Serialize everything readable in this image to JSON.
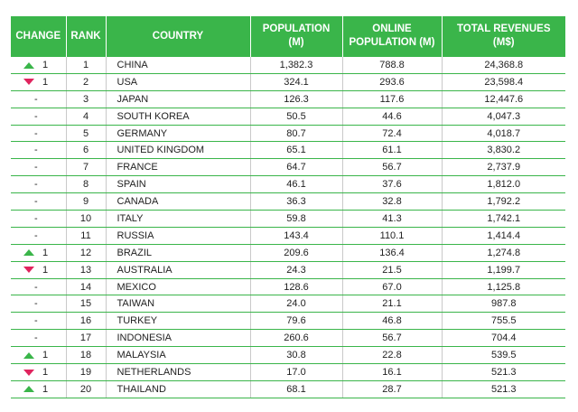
{
  "colors": {
    "header_bg": "#3ab54a",
    "up": "#3ab54a",
    "down": "#e0245e",
    "rule": "#3ab54a"
  },
  "headers": {
    "change": "CHANGE",
    "rank": "RANK",
    "country": "COUNTRY",
    "population": "POPULATION (M)",
    "online": "ONLINE POPULATION (M)",
    "revenues": "TOTAL REVENUES (M$)"
  },
  "rows": [
    {
      "dir": "up",
      "change": "1",
      "rank": "1",
      "country": "CHINA",
      "population": "1,382.3",
      "online": "788.8",
      "revenues": "24,368.8"
    },
    {
      "dir": "down",
      "change": "1",
      "rank": "2",
      "country": "USA",
      "population": "324.1",
      "online": "293.6",
      "revenues": "23,598.4"
    },
    {
      "dir": "none",
      "change": "-",
      "rank": "3",
      "country": "JAPAN",
      "population": "126.3",
      "online": "117.6",
      "revenues": "12,447.6"
    },
    {
      "dir": "none",
      "change": "-",
      "rank": "4",
      "country": "SOUTH KOREA",
      "population": "50.5",
      "online": "44.6",
      "revenues": "4,047.3"
    },
    {
      "dir": "none",
      "change": "-",
      "rank": "5",
      "country": "GERMANY",
      "population": "80.7",
      "online": "72.4",
      "revenues": "4,018.7"
    },
    {
      "dir": "none",
      "change": "-",
      "rank": "6",
      "country": "UNITED KINGDOM",
      "population": "65.1",
      "online": "61.1",
      "revenues": "3,830.2"
    },
    {
      "dir": "none",
      "change": "-",
      "rank": "7",
      "country": "FRANCE",
      "population": "64.7",
      "online": "56.7",
      "revenues": "2,737.9"
    },
    {
      "dir": "none",
      "change": "-",
      "rank": "8",
      "country": "SPAIN",
      "population": "46.1",
      "online": "37.6",
      "revenues": "1,812.0"
    },
    {
      "dir": "none",
      "change": "-",
      "rank": "9",
      "country": "CANADA",
      "population": "36.3",
      "online": "32.8",
      "revenues": "1,792.2"
    },
    {
      "dir": "none",
      "change": "-",
      "rank": "10",
      "country": "ITALY",
      "population": "59.8",
      "online": "41.3",
      "revenues": "1,742.1"
    },
    {
      "dir": "none",
      "change": "-",
      "rank": "11",
      "country": "RUSSIA",
      "population": "143.4",
      "online": "110.1",
      "revenues": "1,414.4"
    },
    {
      "dir": "up",
      "change": "1",
      "rank": "12",
      "country": "BRAZIL",
      "population": "209.6",
      "online": "136.4",
      "revenues": "1,274.8"
    },
    {
      "dir": "down",
      "change": "1",
      "rank": "13",
      "country": "AUSTRALIA",
      "population": "24.3",
      "online": "21.5",
      "revenues": "1,199.7"
    },
    {
      "dir": "none",
      "change": "-",
      "rank": "14",
      "country": "MEXICO",
      "population": "128.6",
      "online": "67.0",
      "revenues": "1,125.8"
    },
    {
      "dir": "none",
      "change": "-",
      "rank": "15",
      "country": "TAIWAN",
      "population": "24.0",
      "online": "21.1",
      "revenues": "987.8"
    },
    {
      "dir": "none",
      "change": "-",
      "rank": "16",
      "country": "TURKEY",
      "population": "79.6",
      "online": "46.8",
      "revenues": "755.5"
    },
    {
      "dir": "none",
      "change": "-",
      "rank": "17",
      "country": "INDONESIA",
      "population": "260.6",
      "online": "56.7",
      "revenues": "704.4"
    },
    {
      "dir": "up",
      "change": "1",
      "rank": "18",
      "country": "MALAYSIA",
      "population": "30.8",
      "online": "22.8",
      "revenues": "539.5"
    },
    {
      "dir": "down",
      "change": "1",
      "rank": "19",
      "country": "NETHERLANDS",
      "population": "17.0",
      "online": "16.1",
      "revenues": "521.3"
    },
    {
      "dir": "up",
      "change": "1",
      "rank": "20",
      "country": "THAILAND",
      "population": "68.1",
      "online": "28.7",
      "revenues": "521.3"
    }
  ]
}
